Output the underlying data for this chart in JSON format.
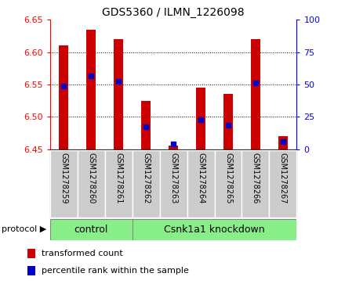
{
  "title": "GDS5360 / ILMN_1226098",
  "samples": [
    "GSM1278259",
    "GSM1278260",
    "GSM1278261",
    "GSM1278262",
    "GSM1278263",
    "GSM1278264",
    "GSM1278265",
    "GSM1278266",
    "GSM1278267"
  ],
  "bar_tops": [
    6.61,
    6.635,
    6.62,
    6.525,
    6.455,
    6.545,
    6.535,
    6.62,
    6.47
  ],
  "bar_bottom": 6.45,
  "percentile_values": [
    6.548,
    6.563,
    6.555,
    6.485,
    6.458,
    6.495,
    6.487,
    6.553,
    6.462
  ],
  "ylim": [
    6.45,
    6.65
  ],
  "yticks_left": [
    6.45,
    6.5,
    6.55,
    6.6,
    6.65
  ],
  "yticks_right": [
    0,
    25,
    50,
    75,
    100
  ],
  "bar_color": "#cc0000",
  "percentile_color": "#0000cc",
  "n_control": 3,
  "control_label": "control",
  "knockdown_label": "Csnk1a1 knockdown",
  "protocol_label": "protocol",
  "legend_bar_label": "transformed count",
  "legend_percentile_label": "percentile rank within the sample",
  "group_box_color": "#88ee88",
  "tick_box_color": "#cccccc",
  "background_color": "#ffffff",
  "grid_yticks": [
    6.5,
    6.55,
    6.6
  ],
  "title_fontsize": 10,
  "axis_label_fontsize": 8,
  "sample_label_fontsize": 7,
  "group_label_fontsize": 9,
  "legend_fontsize": 8
}
